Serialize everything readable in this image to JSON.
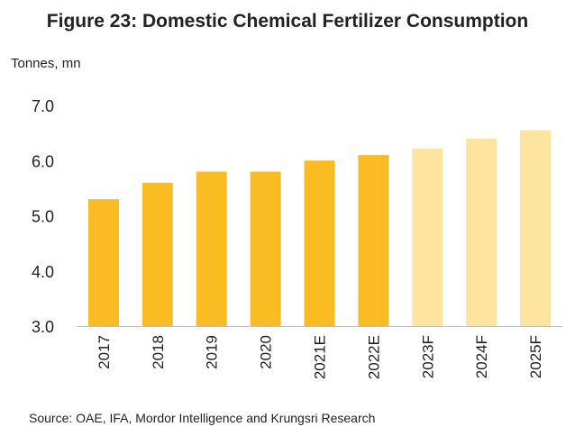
{
  "title": "Figure 23: Domestic Chemical Fertilizer Consumption",
  "unit_label": "Tonnes, mn",
  "source": "Source: OAE, IFA, Mordor Intelligence and Krungsri Research",
  "colors": {
    "actual": "#FBBB22",
    "forecast": "#FDE59F",
    "axis": "#BFBFBF"
  },
  "chart_data": {
    "type": "bar",
    "title": "Figure 23: Domestic Chemical Fertilizer Consumption",
    "ylabel": "Tonnes, mn",
    "xlabel": "",
    "ylim": [
      3.0,
      7.0
    ],
    "yticks": [
      "3.0",
      "4.0",
      "5.0",
      "6.0",
      "7.0"
    ],
    "grid": false,
    "legend": "none",
    "categories": [
      "2017",
      "2018",
      "2019",
      "2020",
      "2021E",
      "2022E",
      "2023F",
      "2024F",
      "2025F"
    ],
    "values": [
      5.3,
      5.6,
      5.8,
      5.8,
      6.0,
      6.1,
      6.22,
      6.4,
      6.55
    ],
    "forecast": [
      false,
      false,
      false,
      false,
      false,
      false,
      true,
      true,
      true
    ]
  }
}
